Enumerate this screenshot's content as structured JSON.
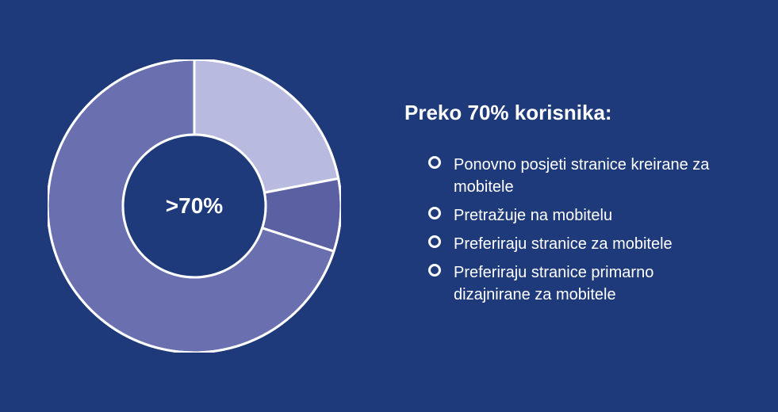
{
  "background_color": "#1e3a7b",
  "donut": {
    "type": "donut",
    "center_label": ">70%",
    "center_label_fontsize": 28,
    "center_label_color": "#ffffff",
    "center_label_weight": 700,
    "outer_radius": 185,
    "inner_radius": 90,
    "stroke_color": "#ffffff",
    "stroke_width": 3,
    "slices": [
      {
        "value": 70,
        "color": "#6a6fb0",
        "start_angle": 0
      },
      {
        "value": 22,
        "color": "#b9bae0",
        "start_angle": 0
      },
      {
        "value": 8,
        "color": "#5b60a3",
        "start_angle": 79.2
      }
    ]
  },
  "heading": {
    "text": "Preko 70% korisnika:",
    "fontsize": 26,
    "color": "#ffffff",
    "weight": 700
  },
  "bullets": {
    "fontsize": 20,
    "color": "#ffffff",
    "marker_border_color": "#ffffff",
    "items": [
      "Ponovno posjeti stranice kreirane za mobitele",
      "Pretražuje na mobitelu",
      "Preferiraju stranice za mobitele",
      "Preferiraju stranice primarno dizajnirane za mobitele"
    ]
  }
}
